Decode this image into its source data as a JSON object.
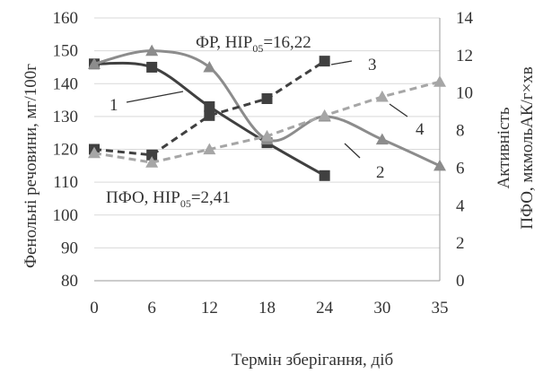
{
  "chart_data": {
    "type": "line",
    "x": [
      0,
      6,
      12,
      18,
      24,
      30,
      35
    ],
    "x_ticks": [
      "0",
      "6",
      "12",
      "18",
      "24",
      "30",
      "35"
    ],
    "xlabel": "Термін зберігання, діб",
    "ylabel_left": "Фенольні речовини, мг/100г",
    "ylabel_right": [
      "Активність",
      "ПФО, мкмольАК/г×хв"
    ],
    "ylim_left": [
      80,
      160
    ],
    "ylim_right": [
      0,
      14
    ],
    "yticks_left": [
      "80",
      "90",
      "100",
      "110",
      "120",
      "130",
      "140",
      "150",
      "160"
    ],
    "yticks_right": [
      "0",
      "2",
      "4",
      "6",
      "8",
      "10",
      "12",
      "14"
    ],
    "grid": "horizontal",
    "series": [
      {
        "name": "1",
        "axis": "left",
        "style": "solid",
        "color": "#404040",
        "marker": "square",
        "x": [
          0,
          6,
          12,
          18,
          24
        ],
        "values": [
          146,
          145,
          133,
          122,
          112
        ]
      },
      {
        "name": "2",
        "axis": "left",
        "style": "solid",
        "color": "#8c8c8c",
        "marker": "triangle",
        "x": [
          0,
          6,
          12,
          18,
          24,
          30,
          35
        ],
        "values": [
          146,
          150,
          145,
          123,
          130,
          123,
          115
        ]
      },
      {
        "name": "3",
        "axis": "right",
        "style": "dashed",
        "color": "#404040",
        "marker": "square",
        "x": [
          0,
          6,
          12,
          18,
          24
        ],
        "values": [
          7,
          6.7,
          8.8,
          9.7,
          11.7
        ]
      },
      {
        "name": "4",
        "axis": "right",
        "style": "dashed",
        "color": "#a6a6a6",
        "marker": "triangle",
        "x": [
          0,
          6,
          12,
          18,
          24,
          30,
          35
        ],
        "values": [
          6.8,
          6.3,
          7,
          7.7,
          8.8,
          9.8,
          10.6
        ]
      }
    ],
    "annotations": {
      "fr_prefix": "ФР, НІР",
      "fr_sub": "05",
      "fr_value": "=16,22",
      "pfo_prefix": "ПФО, НІР",
      "pfo_sub": "05",
      "pfo_value": "=2,41",
      "labels": [
        "1",
        "2",
        "3",
        "4"
      ]
    }
  }
}
